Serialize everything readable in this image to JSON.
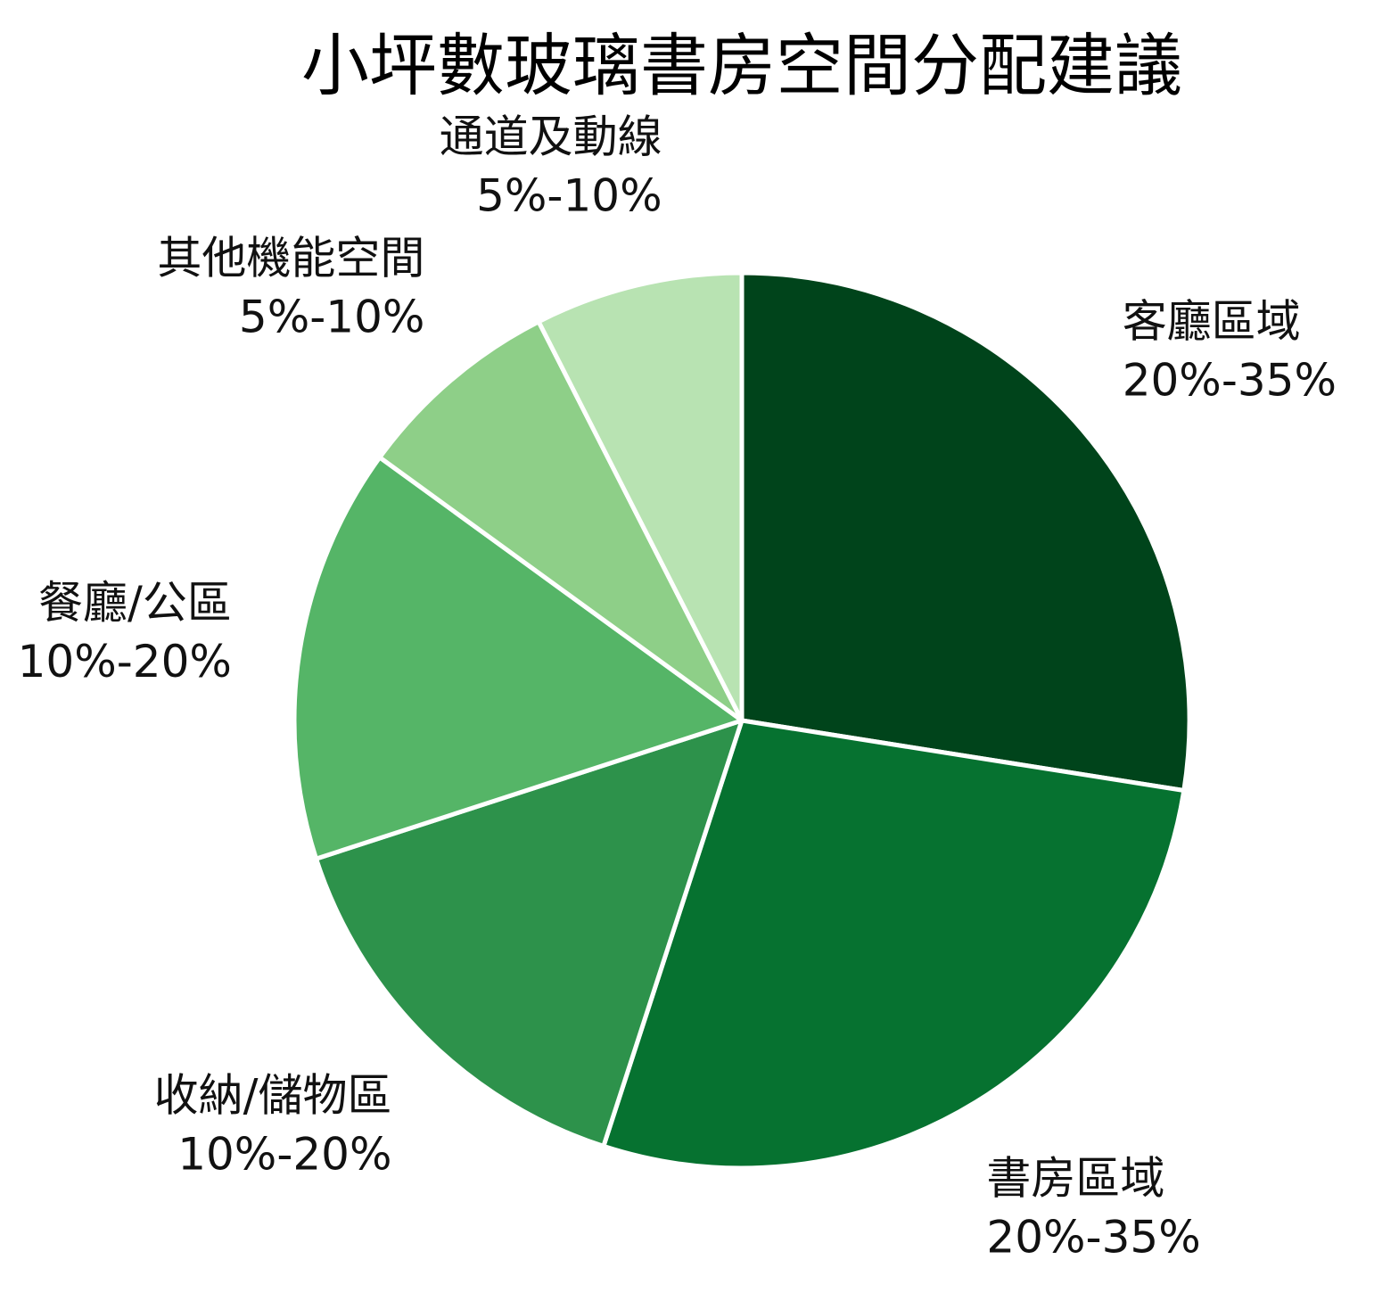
{
  "chart_data": {
    "type": "pie",
    "title": "小坪數玻璃書房空間分配建議",
    "slices": [
      {
        "label": "客廳區域",
        "range": "20%-35%",
        "value": 27.5,
        "color": "#00441b"
      },
      {
        "label": "書房區域",
        "range": "20%-35%",
        "value": 27.5,
        "color": "#067230"
      },
      {
        "label": "收納/儲物區",
        "range": "10%-20%",
        "value": 15,
        "color": "#2d924b"
      },
      {
        "label": "餐廳/公區",
        "range": "10%-20%",
        "value": 15,
        "color": "#55b567"
      },
      {
        "label": "其他機能空間",
        "range": "5%-10%",
        "value": 7.5,
        "color": "#8ecf88"
      },
      {
        "label": "通道及動線",
        "range": "5%-10%",
        "value": 7.5,
        "color": "#b8e3b2"
      }
    ],
    "start_angle": "12 o'clock",
    "direction": "clockwise",
    "legend": "none",
    "slice_border_color": "#ffffff"
  }
}
